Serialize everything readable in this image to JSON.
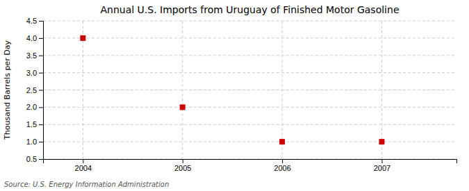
{
  "chart_data": {
    "type": "scatter",
    "title": "Annual U.S. Imports from Uruguay of Finished Motor Gasoline",
    "y_label": "Thousand Barrels per Day",
    "source": "Source: U.S. Energy Information Administration",
    "x": [
      2004,
      2005,
      2006,
      2007
    ],
    "values": [
      4.0,
      2.0,
      1.0,
      1.0
    ],
    "color": "#cc0000",
    "marker": "square",
    "xlim": [
      2003.6,
      2007.75
    ],
    "ylim": [
      0.5,
      4.5
    ],
    "xticks": [
      2004,
      2005,
      2006,
      2007
    ],
    "yticks": [
      0.5,
      {
        "value": 1.0,
        "label": "1.0"
      },
      1.5,
      {
        "value": 2.0,
        "label": "2.0"
      },
      2.5,
      {
        "value": 3.0,
        "label": "3.0"
      },
      3.5,
      {
        "value": 4.0,
        "label": "4.0"
      },
      4.5
    ],
    "grid": true
  }
}
